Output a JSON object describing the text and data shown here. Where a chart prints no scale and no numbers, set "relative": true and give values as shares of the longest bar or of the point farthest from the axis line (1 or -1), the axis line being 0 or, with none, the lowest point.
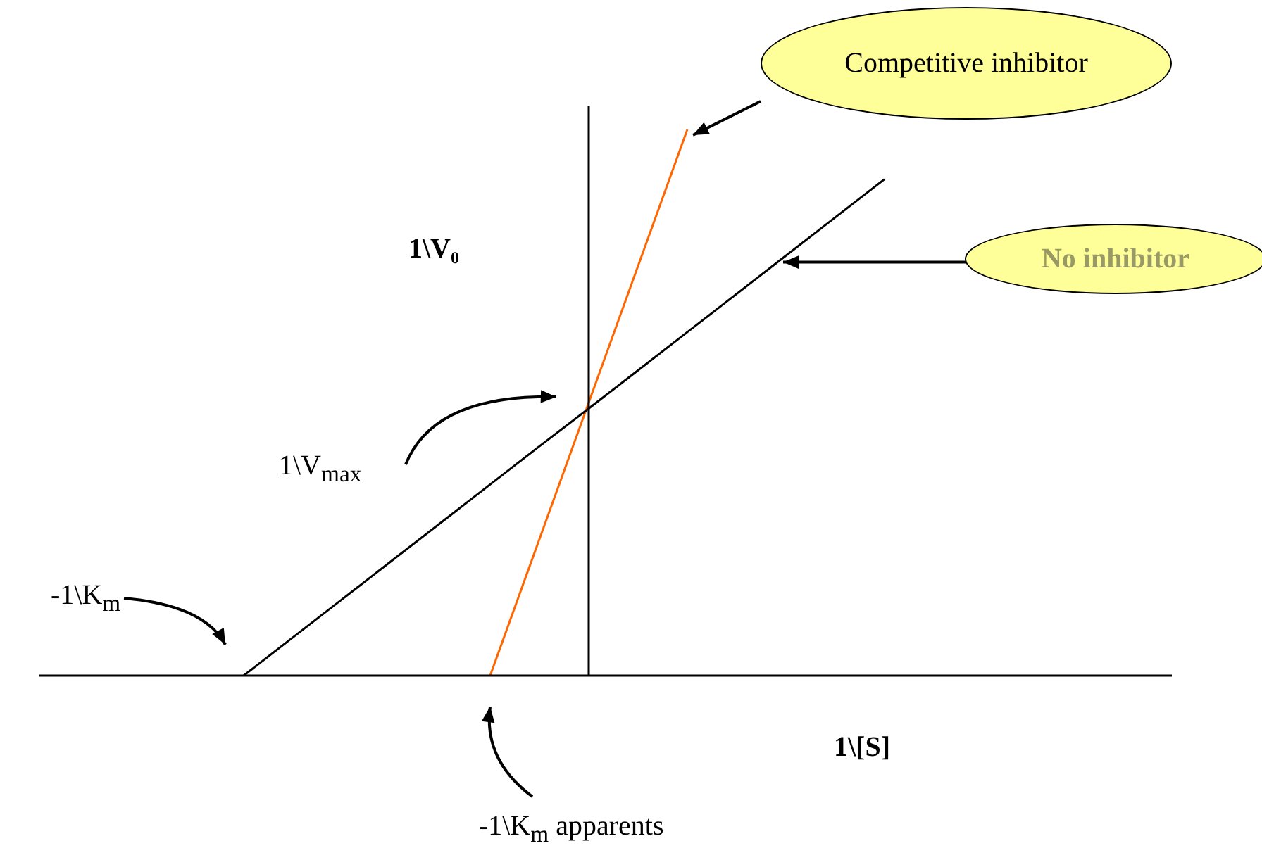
{
  "chart_data": {
    "type": "line",
    "relative": true,
    "xlabel": "1\\[S]",
    "ylabel": "1\\V₀",
    "marker": "none",
    "line_style": "solid",
    "categories": [
      null,
      null,
      null,
      null,
      null,
      null,
      null,
      null,
      null,
      null,
      null,
      null,
      null,
      null,
      null,
      null,
      null,
      null,
      null,
      null,
      null,
      null,
      null,
      null
    ],
    "series": [
      {
        "name": "No inhibitor",
        "color": "#000000",
        "values": [
          null,
          null,
          null,
          null,
          0,
          0.07,
          0.14,
          0.21,
          0.28,
          0.35,
          0.42,
          0.489,
          0.559,
          0.629,
          0.699,
          0.769,
          0.839,
          0.909,
          null,
          null,
          null,
          null,
          null,
          null
        ]
      },
      {
        "name": "Competitive inhibitor",
        "color": "#ff6600",
        "values": [
          null,
          null,
          null,
          null,
          null,
          null,
          null,
          null,
          null,
          0,
          0.25,
          0.5,
          0.75,
          1,
          null,
          null,
          null,
          null,
          null,
          null,
          null,
          null,
          null,
          null
        ]
      }
    ],
    "annotations": [
      "1\\V$_{max}$",
      "-1\\K$_{m}$",
      "-1\\K$_{m}$ apparents"
    ]
  }
}
